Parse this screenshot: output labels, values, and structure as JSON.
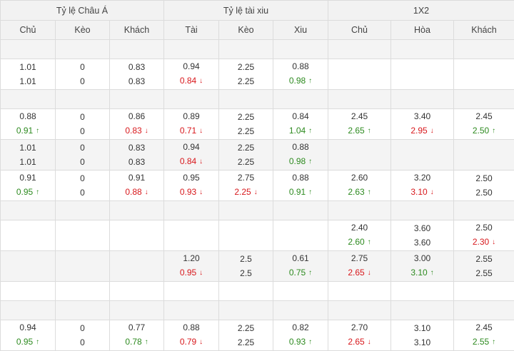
{
  "header": {
    "groups": [
      "Tỷ lệ Châu Á",
      "Tỷ lệ tài xiu",
      "1X2"
    ],
    "columns": [
      "Chủ",
      "Kèo",
      "Khách",
      "Tài",
      "Kèo",
      "Xiu",
      "Chủ",
      "Hòa",
      "Khách"
    ]
  },
  "colors": {
    "up": "#2d8a1f",
    "down": "#d8181c",
    "neutral": "#333333",
    "shade": "#f4f4f4"
  },
  "rows": [
    {
      "gap": true,
      "shade": true
    },
    {
      "shade": false,
      "cells": [
        [
          [
            "1.01",
            ""
          ],
          [
            "1.01",
            ""
          ]
        ],
        [
          [
            "0",
            ""
          ],
          [
            "0",
            ""
          ]
        ],
        [
          [
            "0.83",
            ""
          ],
          [
            "0.83",
            ""
          ]
        ],
        [
          [
            "0.94",
            ""
          ],
          [
            "0.84",
            "down"
          ]
        ],
        [
          [
            "2.25",
            ""
          ],
          [
            "2.25",
            ""
          ]
        ],
        [
          [
            "0.88",
            ""
          ],
          [
            "0.98",
            "up"
          ]
        ],
        [],
        [],
        []
      ]
    },
    {
      "gap": true,
      "shade": true
    },
    {
      "shade": false,
      "cells": [
        [
          [
            "0.88",
            ""
          ],
          [
            "0.91",
            "up"
          ]
        ],
        [
          [
            "0",
            ""
          ],
          [
            "0",
            ""
          ]
        ],
        [
          [
            "0.86",
            ""
          ],
          [
            "0.83",
            "down"
          ]
        ],
        [
          [
            "0.89",
            ""
          ],
          [
            "0.71",
            "down"
          ]
        ],
        [
          [
            "2.25",
            ""
          ],
          [
            "2.25",
            ""
          ]
        ],
        [
          [
            "0.84",
            ""
          ],
          [
            "1.04",
            "up"
          ]
        ],
        [
          [
            "2.45",
            ""
          ],
          [
            "2.65",
            "up"
          ]
        ],
        [
          [
            "3.40",
            ""
          ],
          [
            "2.95",
            "down"
          ]
        ],
        [
          [
            "2.45",
            ""
          ],
          [
            "2.50",
            "up"
          ]
        ]
      ]
    },
    {
      "shade": true,
      "cells": [
        [
          [
            "1.01",
            ""
          ],
          [
            "1.01",
            ""
          ]
        ],
        [
          [
            "0",
            ""
          ],
          [
            "0",
            ""
          ]
        ],
        [
          [
            "0.83",
            ""
          ],
          [
            "0.83",
            ""
          ]
        ],
        [
          [
            "0.94",
            ""
          ],
          [
            "0.84",
            "down"
          ]
        ],
        [
          [
            "2.25",
            ""
          ],
          [
            "2.25",
            ""
          ]
        ],
        [
          [
            "0.88",
            ""
          ],
          [
            "0.98",
            "up"
          ]
        ],
        [],
        [],
        []
      ]
    },
    {
      "shade": false,
      "cells": [
        [
          [
            "0.91",
            ""
          ],
          [
            "0.95",
            "up"
          ]
        ],
        [
          [
            "0",
            ""
          ],
          [
            "0",
            ""
          ]
        ],
        [
          [
            "0.91",
            ""
          ],
          [
            "0.88",
            "down"
          ]
        ],
        [
          [
            "0.95",
            ""
          ],
          [
            "0.93",
            "down"
          ]
        ],
        [
          [
            "2.75",
            ""
          ],
          [
            "2.25",
            "down"
          ]
        ],
        [
          [
            "0.88",
            ""
          ],
          [
            "0.91",
            "up"
          ]
        ],
        [
          [
            "2.60",
            ""
          ],
          [
            "2.63",
            "up"
          ]
        ],
        [
          [
            "3.20",
            ""
          ],
          [
            "3.10",
            "down"
          ]
        ],
        [
          [
            "2.50",
            ""
          ],
          [
            "2.50",
            ""
          ]
        ]
      ]
    },
    {
      "gap": true,
      "shade": true
    },
    {
      "shade": false,
      "cells": [
        [],
        [],
        [],
        [],
        [],
        [],
        [
          [
            "2.40",
            ""
          ],
          [
            "2.60",
            "up"
          ]
        ],
        [
          [
            "3.60",
            ""
          ],
          [
            "3.60",
            ""
          ]
        ],
        [
          [
            "2.50",
            ""
          ],
          [
            "2.30",
            "down"
          ]
        ]
      ]
    },
    {
      "shade": true,
      "cells": [
        [],
        [],
        [],
        [
          [
            "1.20",
            ""
          ],
          [
            "0.95",
            "down"
          ]
        ],
        [
          [
            "2.5",
            ""
          ],
          [
            "2.5",
            ""
          ]
        ],
        [
          [
            "0.61",
            ""
          ],
          [
            "0.75",
            "up"
          ]
        ],
        [
          [
            "2.75",
            ""
          ],
          [
            "2.65",
            "down"
          ]
        ],
        [
          [
            "3.00",
            ""
          ],
          [
            "3.10",
            "up"
          ]
        ],
        [
          [
            "2.55",
            ""
          ],
          [
            "2.55",
            ""
          ]
        ]
      ]
    },
    {
      "gap": true,
      "shade": false
    },
    {
      "gap": true,
      "shade": true
    },
    {
      "shade": false,
      "cells": [
        [
          [
            "0.94",
            ""
          ],
          [
            "0.95",
            "up"
          ]
        ],
        [
          [
            "0",
            ""
          ],
          [
            "0",
            ""
          ]
        ],
        [
          [
            "0.77",
            ""
          ],
          [
            "0.78",
            "up"
          ]
        ],
        [
          [
            "0.88",
            ""
          ],
          [
            "0.79",
            "down"
          ]
        ],
        [
          [
            "2.25",
            ""
          ],
          [
            "2.25",
            ""
          ]
        ],
        [
          [
            "0.82",
            ""
          ],
          [
            "0.93",
            "up"
          ]
        ],
        [
          [
            "2.70",
            ""
          ],
          [
            "2.65",
            "down"
          ]
        ],
        [
          [
            "3.10",
            ""
          ],
          [
            "3.10",
            ""
          ]
        ],
        [
          [
            "2.45",
            ""
          ],
          [
            "2.55",
            "up"
          ]
        ]
      ]
    }
  ]
}
